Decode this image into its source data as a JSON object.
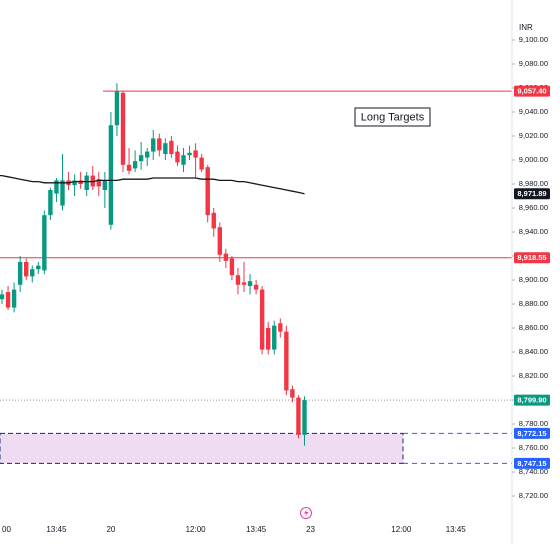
{
  "chart_data": {
    "type": "candlestick",
    "currency": "INR",
    "annotation": "Long Targets",
    "up_color": "#089981",
    "down_color": "#f23645",
    "ma_color": "#131722",
    "ylim": [
      8690,
      9130
    ],
    "yticks": [
      {
        "value": 9100,
        "label": "9,100.00"
      },
      {
        "value": 9080,
        "label": "9,080.00"
      },
      {
        "value": 9060,
        "label": "9,060.00"
      },
      {
        "value": 9040,
        "label": "9,040.00"
      },
      {
        "value": 9020,
        "label": "9,020.00"
      },
      {
        "value": 9000,
        "label": "9,000.00"
      },
      {
        "value": 8980,
        "label": "8,980.00"
      },
      {
        "value": 8960,
        "label": "8,960.00"
      },
      {
        "value": 8940,
        "label": "8,940.00"
      },
      {
        "value": 8920,
        "label": "8,920.00"
      },
      {
        "value": 8900,
        "label": "8,900.00"
      },
      {
        "value": 8880,
        "label": "8,880.00"
      },
      {
        "value": 8860,
        "label": "8,860.00"
      },
      {
        "value": 8840,
        "label": "8,840.00"
      },
      {
        "value": 8820,
        "label": "8,820.00"
      },
      {
        "value": 8800,
        "label": "8,800.00"
      },
      {
        "value": 8780,
        "label": "8,780.00"
      },
      {
        "value": 8760,
        "label": "8,760.00"
      },
      {
        "value": 8740,
        "label": "8,740.00"
      },
      {
        "value": 8720,
        "label": "8,720.00"
      }
    ],
    "categories": [
      "00",
      null,
      null,
      null,
      null,
      null,
      null,
      null,
      null,
      "13:45",
      null,
      null,
      null,
      null,
      null,
      null,
      null,
      null,
      "20",
      null,
      null,
      null,
      null,
      null,
      null,
      null,
      null,
      null,
      null,
      null,
      null,
      null,
      "12:00",
      null,
      null,
      null,
      null,
      null,
      null,
      null,
      null,
      null,
      "13:45",
      null,
      null,
      null,
      null,
      null,
      null,
      null,
      null,
      "23",
      null,
      null,
      null,
      null,
      null,
      null,
      null,
      null,
      null,
      null,
      null,
      null,
      null,
      null,
      "12:00",
      null,
      null,
      null,
      null,
      null,
      null,
      null,
      null,
      "13:45"
    ],
    "open": [
      8884,
      8890,
      8877,
      8896,
      8915,
      8903,
      8909,
      8908,
      8954,
      8972,
      8962,
      8983,
      8979,
      8983,
      8975,
      8987,
      8984,
      8975,
      8946,
      9029,
      9056,
      8996,
      8993,
      8999,
      9002,
      9007,
      9018,
      9005,
      9016,
      9007,
      8996,
      9004,
      9008,
      9002,
      8994,
      8956,
      8944,
      8922,
      8918,
      8904,
      8898,
      8895,
      8896,
      8892,
      8860,
      8842,
      8864,
      8857,
      8809,
      8802,
      8771,
      null,
      null,
      null,
      null,
      null,
      null,
      null,
      null,
      null,
      null,
      null,
      null,
      null,
      null,
      null,
      null,
      null,
      null,
      null,
      null,
      null,
      null,
      null,
      null,
      null
    ],
    "high": [
      8892,
      8895,
      8898,
      8920,
      8918,
      8912,
      8915,
      8958,
      8977,
      8985,
      9005,
      8990,
      8988,
      8990,
      8990,
      8995,
      8990,
      8990,
      9040,
      9064,
      9058,
      9010,
      9008,
      9015,
      9010,
      9025,
      9022,
      9018,
      9020,
      9012,
      9010,
      9012,
      9014,
      9005,
      8996,
      8960,
      8948,
      8926,
      8920,
      8910,
      8915,
      8905,
      8900,
      8895,
      8865,
      8866,
      8868,
      8862,
      8812,
      8804,
      8803,
      null,
      null,
      null,
      null,
      null,
      null,
      null,
      null,
      null,
      null,
      null,
      null,
      null,
      null,
      null,
      null,
      null,
      null,
      null,
      null,
      null,
      null,
      null,
      null,
      null
    ],
    "low": [
      8880,
      8875,
      8873,
      8890,
      8900,
      8898,
      8905,
      8905,
      8950,
      8965,
      8958,
      8975,
      8970,
      8976,
      8970,
      8975,
      8970,
      8960,
      8942,
      9020,
      8990,
      8988,
      8990,
      8992,
      8995,
      9000,
      9003,
      9000,
      9002,
      8995,
      8990,
      9000,
      8985,
      8990,
      8948,
      8936,
      8915,
      8910,
      8900,
      8888,
      8890,
      8888,
      8888,
      8838,
      8838,
      8838,
      8852,
      8804,
      8798,
      8768,
      8762,
      null,
      null,
      null,
      null,
      null,
      null,
      null,
      null,
      null,
      null,
      null,
      null,
      null,
      null,
      null,
      null,
      null,
      null,
      null,
      null,
      null,
      null,
      null,
      null,
      null
    ],
    "close": [
      8888,
      8877,
      8892,
      8915,
      8903,
      8909,
      8912,
      8954,
      8975,
      8983,
      8983,
      8979,
      8983,
      8980,
      8987,
      8978,
      8978,
      8983,
      9029,
      9057,
      8996,
      8991,
      8999,
      9004,
      9007,
      9018,
      9008,
      9014,
      9005,
      8998,
      9004,
      9006,
      9002,
      8992,
      8954,
      8943,
      8921,
      8916,
      8904,
      8896,
      8896,
      8899,
      8892,
      8842,
      8842,
      8862,
      8857,
      8808,
      8802,
      8771,
      8799.9,
      null,
      null,
      null,
      null,
      null,
      null,
      null,
      null,
      null,
      null,
      null,
      null,
      null,
      null,
      null,
      null,
      null,
      null,
      null,
      null,
      null,
      null,
      null,
      null,
      null
    ],
    "ma": [
      8987,
      8986,
      8985,
      8984,
      8983,
      8982,
      8982,
      8981,
      8981,
      8981,
      8981,
      8981,
      8982,
      8982,
      8982,
      8982,
      8983,
      8983,
      8983,
      8983,
      8984,
      8984,
      8984,
      8984,
      8984,
      8985,
      8985,
      8985,
      8985,
      8985,
      8985,
      8985,
      8985,
      8984,
      8984,
      8984,
      8983,
      8983,
      8983,
      8982,
      8982,
      8981,
      8980,
      8979,
      8978,
      8977,
      8976,
      8975,
      8974,
      8973,
      8971.89,
      null,
      null,
      null,
      null,
      null,
      null,
      null,
      null,
      null,
      null,
      null,
      null,
      null,
      null,
      null,
      null,
      null,
      null,
      null,
      null,
      null,
      null,
      null,
      null,
      null
    ],
    "price_labels": [
      {
        "value": 9057.4,
        "label": "9,057.40",
        "color": "#f23645",
        "style": "line"
      },
      {
        "value": 8971.89,
        "label": "8,971.89",
        "color": "#131722",
        "style": "ma"
      },
      {
        "value": 8918.55,
        "label": "8,918.55",
        "color": "#f23645",
        "style": "line"
      },
      {
        "value": 8799.9,
        "label": "8,799.90",
        "color": "#089981",
        "style": "last"
      },
      {
        "value": 8772.15,
        "label": "8,772.15",
        "color": "#2962ff",
        "style": "zone"
      },
      {
        "value": 8747.15,
        "label": "8,747.15",
        "color": "#2962ff",
        "style": "zone"
      }
    ],
    "zone_color": "#9c27b0"
  }
}
